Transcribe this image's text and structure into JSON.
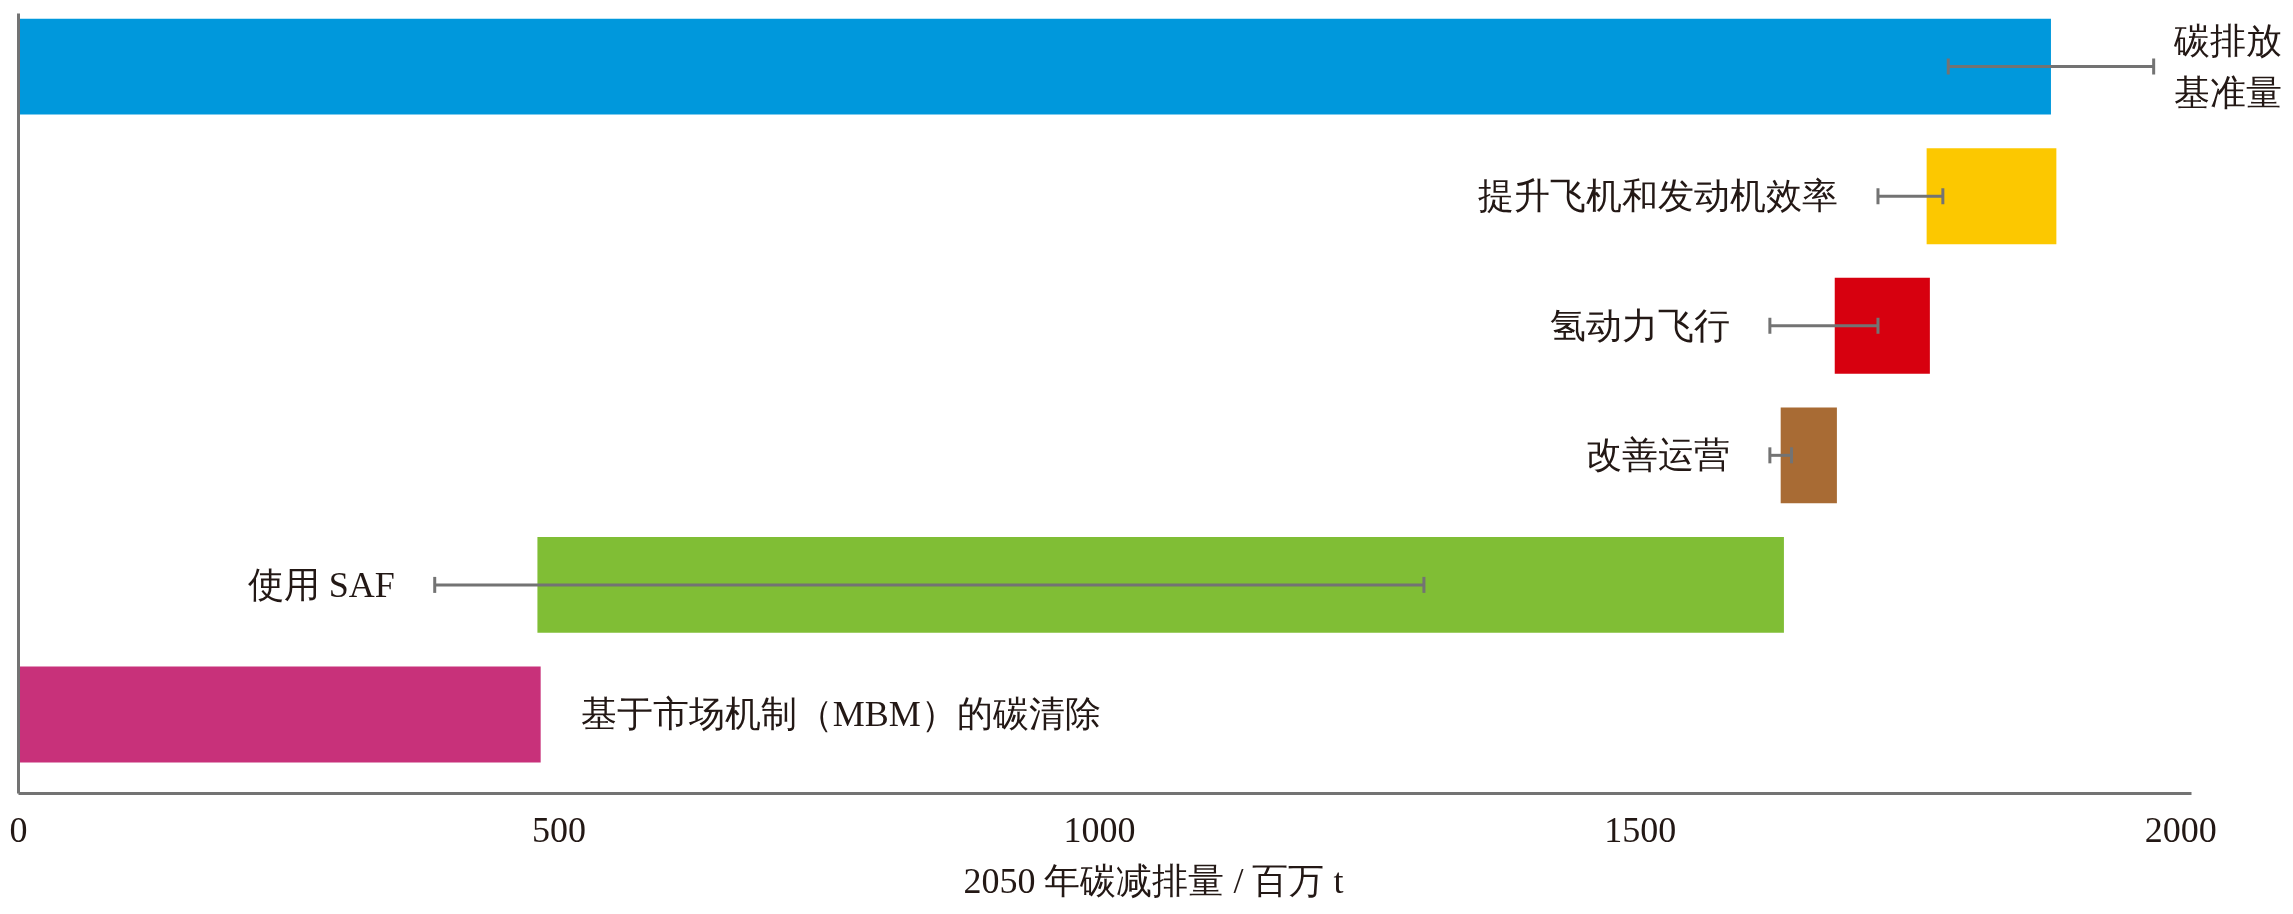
{
  "chart_data": {
    "type": "bar",
    "orientation": "horizontal",
    "categories": [
      "碳排放基准量",
      "提升飞机和发动机效率",
      "氢动力飞行",
      "改善运营",
      "使用 SAF",
      "基于市场机制（MBM）的碳清除"
    ],
    "values": [
      1880,
      120,
      88,
      52,
      1153,
      483
    ],
    "base": [
      0,
      1765,
      1680,
      1630,
      480,
      0
    ],
    "colors": [
      "#0098dc",
      "#fcc800",
      "#d7000f",
      "#a86b34",
      "#80be35",
      "#c8317a"
    ],
    "errors": [
      [
        1785,
        1975
      ],
      [
        1720,
        1780
      ],
      [
        1620,
        1720
      ],
      [
        1620,
        1640
      ],
      [
        385,
        1300
      ],
      null
    ],
    "xlim": [
      0,
      2010
    ],
    "xticks": [
      0,
      500,
      1000,
      1500,
      2000
    ],
    "xlabel": "2050 年碳减排量 / 百万 t",
    "tick_labels": "x"
  }
}
